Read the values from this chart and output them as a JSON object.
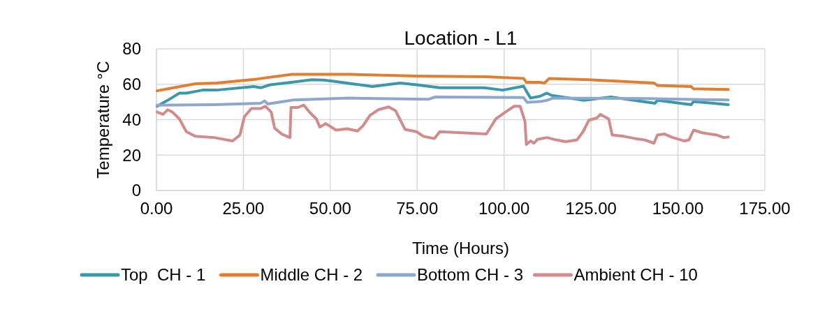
{
  "chart_data": {
    "type": "line",
    "title": "Location - L1",
    "xlabel": "Time (Hours)",
    "ylabel": "Temperature °C",
    "xlim": [
      0,
      175
    ],
    "xticks": [
      {
        "value": 0,
        "label": "0.00"
      },
      {
        "value": 25,
        "label": "25.00"
      },
      {
        "value": 50,
        "label": "50.00"
      },
      {
        "value": 75,
        "label": "75.00"
      },
      {
        "value": 100,
        "label": "100.00"
      },
      {
        "value": 125,
        "label": "125.00"
      },
      {
        "value": 150,
        "label": "150.00"
      },
      {
        "value": 175,
        "label": "175.00"
      }
    ],
    "ylim": [
      0,
      80
    ],
    "yticks": [
      0,
      20,
      40,
      60,
      80
    ],
    "grid": true,
    "legend": "bottom",
    "marker": "none",
    "line_style": "solid",
    "series": [
      {
        "name": "Top  CH - 1",
        "color": "#3c97aa",
        "x": [
          0.2,
          3.2,
          6.6,
          8.6,
          13.3,
          17.3,
          28,
          30,
          32.7,
          38.7,
          44.7,
          48.1,
          51.4,
          62.1,
          70.1,
          74.8,
          81.5,
          94.2,
          99.6,
          105.6,
          106.4,
          107.6,
          110.3,
          112.3,
          113.7,
          123,
          130.7,
          143.4,
          144.1,
          153.8,
          154.5,
          164.5
        ],
        "values": [
          47.6,
          50.9,
          55,
          55,
          56.7,
          56.7,
          58.7,
          58,
          59.7,
          61.1,
          62.6,
          62.4,
          61.6,
          58.7,
          60.7,
          59.7,
          58,
          58,
          56.7,
          58.9,
          56.1,
          52.2,
          53.2,
          55,
          53.7,
          50.9,
          52.8,
          49.3,
          50.9,
          48.5,
          50.2,
          48.5
        ]
      },
      {
        "name": "Middle CH - 2",
        "color": "#e07f32",
        "x": [
          0.2,
          11.2,
          17.3,
          28.7,
          31.3,
          39,
          55.4,
          74.8,
          94.9,
          105.6,
          106.4,
          110.3,
          111.6,
          113,
          124.4,
          143.1,
          144.1,
          153.8,
          154.5,
          164.5
        ],
        "values": [
          56.3,
          60.3,
          60.7,
          62.9,
          63.6,
          65.6,
          65.6,
          64.6,
          64.2,
          63.3,
          61.1,
          61.1,
          60.7,
          63.3,
          62.6,
          60.7,
          59.3,
          58.7,
          57.4,
          57
        ]
      },
      {
        "name": "Bottom CH - 3",
        "color": "#8ea7cf",
        "x": [
          0.2,
          16.6,
          30,
          31.1,
          32,
          39.4,
          55.4,
          78.2,
          80.2,
          105.6,
          106.6,
          110.3,
          112.3,
          114,
          141.1,
          164.5
        ],
        "values": [
          48.2,
          48.5,
          49.3,
          50.6,
          48.9,
          51.1,
          52.2,
          51.5,
          52.8,
          52.5,
          49.8,
          50.2,
          50.9,
          52.2,
          51.9,
          51.1
        ]
      },
      {
        "name": "Ambient CH - 10",
        "color": "#d08c8c",
        "x": [
          0.2,
          1.9,
          3.2,
          4.6,
          6.6,
          8.6,
          11.2,
          16.6,
          21.9,
          24,
          25.3,
          27.3,
          30,
          31.3,
          33,
          34,
          36,
          38.4,
          38.7,
          40.7,
          42.4,
          44,
          46,
          47,
          48.7,
          51.7,
          54.8,
          57.8,
          59.4,
          61.4,
          63.8,
          66.8,
          68.8,
          71.5,
          74.8,
          76.8,
          79.9,
          81.5,
          94.9,
          97.6,
          100.9,
          102.9,
          104.6,
          106,
          106.4,
          107.6,
          108.6,
          109.6,
          112.3,
          114.3,
          117.7,
          121,
          122.7,
          124.4,
          126.7,
          127.7,
          130.1,
          131.1,
          134.4,
          137.8,
          140.4,
          143.1,
          144.1,
          146.1,
          148.5,
          151.8,
          153.2,
          154.5,
          157.2,
          161.2,
          163.2,
          164.5
        ],
        "values": [
          44.3,
          43,
          45.6,
          44.3,
          40.4,
          33.2,
          30.6,
          29.9,
          28,
          31.3,
          41.7,
          46.3,
          46.3,
          47.6,
          44.3,
          35.2,
          31.9,
          29.9,
          46.9,
          46.9,
          48.2,
          44.3,
          40.4,
          35.8,
          37.8,
          34.1,
          34.9,
          33.6,
          36.5,
          42.4,
          45.6,
          47.2,
          45,
          34.5,
          33.2,
          30.6,
          29.3,
          33.2,
          31.9,
          40.4,
          45,
          47.6,
          47.6,
          39.1,
          26,
          28,
          26.7,
          28.9,
          29.9,
          28.9,
          27.6,
          28.6,
          33.2,
          39.7,
          41,
          43,
          40.4,
          31.3,
          30.6,
          29.3,
          28.6,
          26.7,
          31.3,
          31.9,
          29.9,
          28,
          28.6,
          34.1,
          32.5,
          31.3,
          29.9,
          30.2
        ]
      }
    ]
  }
}
